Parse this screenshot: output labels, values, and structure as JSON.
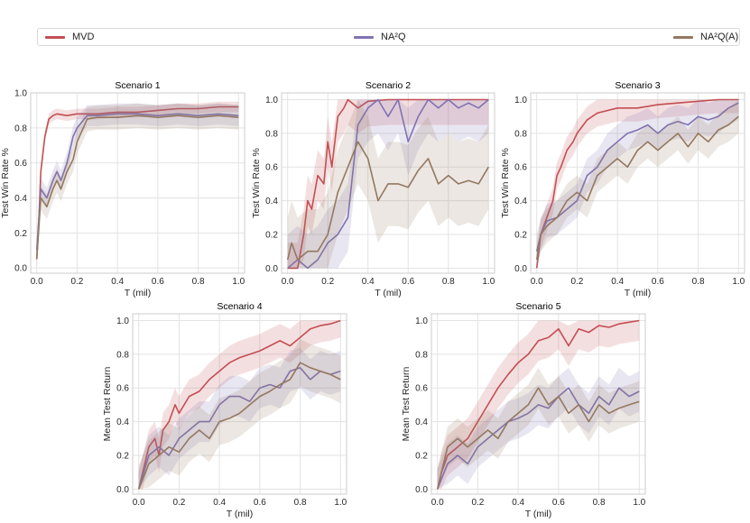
{
  "legend": [
    {
      "label": "MVD",
      "color": "#c44e52"
    },
    {
      "label": "NA²Q",
      "color": "#8172b2"
    },
    {
      "label": "NA²Q(A)",
      "color": "#937860"
    }
  ],
  "chart_data": [
    {
      "type": "line",
      "title": "Scenario 1",
      "xlabel": "T (mil)",
      "ylabel": "Test Win Rate %",
      "xlim": [
        -0.03,
        1.03
      ],
      "ylim": [
        -0.03,
        1.0
      ],
      "xticks": [
        0.0,
        0.2,
        0.4,
        0.6,
        0.8,
        1.0
      ],
      "xtick_labels": [
        "0.0",
        "0.2",
        "0.4",
        "0.6",
        "0.8",
        "1.0"
      ],
      "yticks": [
        0.0,
        0.2,
        0.4,
        0.6,
        0.8,
        1.0
      ],
      "ytick_labels": [
        "0.0",
        "0.2",
        "0.4",
        "0.6",
        "0.8",
        "1.0"
      ],
      "series": [
        {
          "name": "MVD",
          "color": "#c44e52",
          "x": [
            0,
            0.01,
            0.02,
            0.04,
            0.06,
            0.08,
            0.1,
            0.15,
            0.2,
            0.3,
            0.4,
            0.5,
            0.6,
            0.7,
            0.8,
            0.9,
            1.0
          ],
          "y": [
            0.05,
            0.25,
            0.55,
            0.75,
            0.85,
            0.87,
            0.88,
            0.87,
            0.88,
            0.88,
            0.89,
            0.89,
            0.9,
            0.91,
            0.91,
            0.92,
            0.92
          ],
          "band": 0.03
        },
        {
          "name": "NA²Q",
          "color": "#8172b2",
          "x": [
            0,
            0.02,
            0.05,
            0.08,
            0.1,
            0.12,
            0.15,
            0.18,
            0.2,
            0.25,
            0.3,
            0.4,
            0.5,
            0.6,
            0.7,
            0.8,
            0.9,
            1.0
          ],
          "y": [
            0.1,
            0.45,
            0.4,
            0.5,
            0.55,
            0.5,
            0.6,
            0.75,
            0.8,
            0.87,
            0.87,
            0.88,
            0.88,
            0.87,
            0.88,
            0.87,
            0.88,
            0.87
          ],
          "band": 0.06
        },
        {
          "name": "NA²Q(A)",
          "color": "#937860",
          "x": [
            0,
            0.02,
            0.05,
            0.08,
            0.1,
            0.12,
            0.15,
            0.18,
            0.2,
            0.25,
            0.3,
            0.4,
            0.5,
            0.6,
            0.7,
            0.8,
            0.9,
            1.0
          ],
          "y": [
            0.05,
            0.4,
            0.35,
            0.45,
            0.5,
            0.45,
            0.55,
            0.62,
            0.72,
            0.85,
            0.86,
            0.86,
            0.87,
            0.86,
            0.87,
            0.86,
            0.87,
            0.86
          ],
          "band": 0.07
        }
      ]
    },
    {
      "type": "line",
      "title": "Scenario 2",
      "xlabel": "T (mil)",
      "ylabel": "Test Win Rate %",
      "xlim": [
        -0.03,
        1.03
      ],
      "ylim": [
        -0.03,
        1.04
      ],
      "xticks": [
        0.0,
        0.2,
        0.4,
        0.6,
        0.8,
        1.0
      ],
      "xtick_labels": [
        "0.0",
        "0.2",
        "0.4",
        "0.6",
        "0.8",
        "1.0"
      ],
      "yticks": [
        0.0,
        0.2,
        0.4,
        0.6,
        0.8,
        1.0
      ],
      "ytick_labels": [
        "0.0",
        "0.2",
        "0.4",
        "0.6",
        "0.8",
        "1.0"
      ],
      "series": [
        {
          "name": "MVD",
          "color": "#c44e52",
          "x": [
            0,
            0.05,
            0.08,
            0.1,
            0.12,
            0.15,
            0.18,
            0.2,
            0.22,
            0.25,
            0.28,
            0.3,
            0.35,
            0.4,
            0.5,
            0.6,
            0.7,
            0.8,
            0.9,
            1.0
          ],
          "y": [
            0,
            0,
            0.2,
            0.4,
            0.35,
            0.55,
            0.5,
            0.75,
            0.6,
            0.9,
            0.95,
            1.0,
            0.95,
            0.99,
            1.0,
            1.0,
            1.0,
            1.0,
            1.0,
            1.0
          ],
          "band": 0.15
        },
        {
          "name": "NA²Q",
          "color": "#8172b2",
          "x": [
            0,
            0.05,
            0.1,
            0.15,
            0.2,
            0.25,
            0.3,
            0.35,
            0.4,
            0.45,
            0.5,
            0.55,
            0.6,
            0.65,
            0.7,
            0.75,
            0.8,
            0.85,
            0.9,
            0.95,
            1.0
          ],
          "y": [
            0,
            0.05,
            0,
            0.05,
            0.15,
            0.2,
            0.3,
            0.85,
            0.95,
            1.0,
            0.9,
            1.0,
            0.75,
            0.9,
            1.0,
            0.95,
            1.0,
            0.95,
            0.98,
            0.95,
            1.0
          ],
          "band": 0.2
        },
        {
          "name": "NA²Q(A)",
          "color": "#937860",
          "x": [
            0,
            0.02,
            0.05,
            0.1,
            0.15,
            0.2,
            0.25,
            0.3,
            0.35,
            0.4,
            0.45,
            0.5,
            0.55,
            0.6,
            0.65,
            0.7,
            0.75,
            0.8,
            0.85,
            0.9,
            0.95,
            1.0
          ],
          "y": [
            0.05,
            0.15,
            0.05,
            0.1,
            0.1,
            0.2,
            0.45,
            0.6,
            0.75,
            0.65,
            0.4,
            0.5,
            0.5,
            0.48,
            0.58,
            0.65,
            0.5,
            0.55,
            0.5,
            0.52,
            0.5,
            0.6
          ],
          "band": 0.25
        }
      ]
    },
    {
      "type": "line",
      "title": "Scenario 3",
      "xlabel": "T (mil)",
      "ylabel": "Test Win Rate %",
      "xlim": [
        -0.03,
        1.03
      ],
      "ylim": [
        -0.03,
        1.04
      ],
      "xticks": [
        0.0,
        0.2,
        0.4,
        0.6,
        0.8,
        1.0
      ],
      "xtick_labels": [
        "0.0",
        "0.2",
        "0.4",
        "0.6",
        "0.8",
        "1.0"
      ],
      "yticks": [
        0.0,
        0.2,
        0.4,
        0.6,
        0.8,
        1.0
      ],
      "ytick_labels": [
        "0.0",
        "0.2",
        "0.4",
        "0.6",
        "0.8",
        "1.0"
      ],
      "series": [
        {
          "name": "MVD",
          "color": "#c44e52",
          "x": [
            0,
            0.02,
            0.05,
            0.08,
            0.1,
            0.12,
            0.15,
            0.18,
            0.2,
            0.25,
            0.3,
            0.4,
            0.5,
            0.6,
            0.7,
            0.8,
            0.9,
            1.0
          ],
          "y": [
            0,
            0.2,
            0.3,
            0.4,
            0.55,
            0.6,
            0.7,
            0.75,
            0.8,
            0.88,
            0.92,
            0.95,
            0.95,
            0.97,
            0.98,
            0.99,
            1.0,
            1.0
          ],
          "band": 0.08
        },
        {
          "name": "NA²Q",
          "color": "#8172b2",
          "x": [
            0,
            0.02,
            0.05,
            0.1,
            0.15,
            0.2,
            0.25,
            0.3,
            0.35,
            0.4,
            0.45,
            0.5,
            0.55,
            0.6,
            0.65,
            0.7,
            0.75,
            0.8,
            0.85,
            0.9,
            0.95,
            1.0
          ],
          "y": [
            0.1,
            0.2,
            0.28,
            0.3,
            0.35,
            0.4,
            0.55,
            0.6,
            0.7,
            0.75,
            0.8,
            0.82,
            0.85,
            0.8,
            0.85,
            0.87,
            0.85,
            0.9,
            0.88,
            0.9,
            0.95,
            0.98
          ],
          "band": 0.1
        },
        {
          "name": "NA²Q(A)",
          "color": "#937860",
          "x": [
            0,
            0.02,
            0.05,
            0.1,
            0.15,
            0.2,
            0.25,
            0.3,
            0.35,
            0.4,
            0.45,
            0.5,
            0.55,
            0.6,
            0.65,
            0.7,
            0.75,
            0.8,
            0.85,
            0.9,
            0.95,
            1.0
          ],
          "y": [
            0.05,
            0.2,
            0.25,
            0.3,
            0.4,
            0.45,
            0.4,
            0.55,
            0.6,
            0.65,
            0.6,
            0.7,
            0.75,
            0.7,
            0.75,
            0.8,
            0.72,
            0.8,
            0.75,
            0.82,
            0.85,
            0.9
          ],
          "band": 0.1
        }
      ]
    },
    {
      "type": "line",
      "title": "Scenario 4",
      "xlabel": "T (mil)",
      "ylabel": "Mean Test Return",
      "xlim": [
        -0.03,
        1.03
      ],
      "ylim": [
        -0.03,
        1.04
      ],
      "xticks": [
        0.0,
        0.2,
        0.4,
        0.6,
        0.8,
        1.0
      ],
      "xtick_labels": [
        "0.0",
        "0.2",
        "0.4",
        "0.6",
        "0.8",
        "1.0"
      ],
      "yticks": [
        0.0,
        0.2,
        0.4,
        0.6,
        0.8,
        1.0
      ],
      "ytick_labels": [
        "0.0",
        "0.2",
        "0.4",
        "0.6",
        "0.8",
        "1.0"
      ],
      "series": [
        {
          "name": "MVD",
          "color": "#c44e52",
          "x": [
            0,
            0.02,
            0.05,
            0.08,
            0.1,
            0.12,
            0.15,
            0.18,
            0.2,
            0.25,
            0.3,
            0.35,
            0.4,
            0.45,
            0.5,
            0.55,
            0.6,
            0.65,
            0.7,
            0.75,
            0.8,
            0.85,
            0.9,
            0.95,
            1.0
          ],
          "y": [
            0,
            0.1,
            0.25,
            0.3,
            0.2,
            0.35,
            0.4,
            0.5,
            0.45,
            0.55,
            0.58,
            0.65,
            0.7,
            0.75,
            0.78,
            0.8,
            0.82,
            0.85,
            0.88,
            0.85,
            0.9,
            0.95,
            0.97,
            0.98,
            1.0
          ],
          "band": 0.1
        },
        {
          "name": "NA²Q",
          "color": "#8172b2",
          "x": [
            0,
            0.05,
            0.1,
            0.15,
            0.2,
            0.25,
            0.3,
            0.35,
            0.4,
            0.45,
            0.5,
            0.55,
            0.6,
            0.65,
            0.7,
            0.75,
            0.8,
            0.85,
            0.9,
            0.95,
            1.0
          ],
          "y": [
            0,
            0.2,
            0.25,
            0.2,
            0.3,
            0.35,
            0.4,
            0.4,
            0.5,
            0.55,
            0.55,
            0.52,
            0.6,
            0.62,
            0.6,
            0.7,
            0.72,
            0.65,
            0.7,
            0.68,
            0.7
          ],
          "band": 0.12
        },
        {
          "name": "NA²Q(A)",
          "color": "#937860",
          "x": [
            0,
            0.05,
            0.1,
            0.15,
            0.2,
            0.25,
            0.3,
            0.35,
            0.4,
            0.45,
            0.5,
            0.55,
            0.6,
            0.65,
            0.7,
            0.75,
            0.8,
            0.85,
            0.9,
            0.95,
            1.0
          ],
          "y": [
            0,
            0.15,
            0.2,
            0.25,
            0.22,
            0.3,
            0.35,
            0.3,
            0.4,
            0.42,
            0.45,
            0.5,
            0.55,
            0.58,
            0.62,
            0.65,
            0.75,
            0.72,
            0.7,
            0.68,
            0.65
          ],
          "band": 0.14
        }
      ]
    },
    {
      "type": "line",
      "title": "Scenario 5",
      "xlabel": "T (mil)",
      "ylabel": "Mean Test Return",
      "xlim": [
        -0.03,
        1.03
      ],
      "ylim": [
        -0.03,
        1.04
      ],
      "xticks": [
        0.0,
        0.2,
        0.4,
        0.6,
        0.8,
        1.0
      ],
      "xtick_labels": [
        "0.0",
        "0.2",
        "0.4",
        "0.6",
        "0.8",
        "1.0"
      ],
      "yticks": [
        0.0,
        0.2,
        0.4,
        0.6,
        0.8,
        1.0
      ],
      "ytick_labels": [
        "0.0",
        "0.2",
        "0.4",
        "0.6",
        "0.8",
        "1.0"
      ],
      "series": [
        {
          "name": "MVD",
          "color": "#c44e52",
          "x": [
            0,
            0.02,
            0.05,
            0.1,
            0.15,
            0.2,
            0.25,
            0.3,
            0.35,
            0.4,
            0.45,
            0.5,
            0.55,
            0.6,
            0.65,
            0.7,
            0.75,
            0.8,
            0.85,
            0.9,
            0.95,
            1.0
          ],
          "y": [
            0,
            0.1,
            0.2,
            0.25,
            0.3,
            0.4,
            0.5,
            0.6,
            0.68,
            0.75,
            0.8,
            0.88,
            0.9,
            0.95,
            0.85,
            0.95,
            0.93,
            0.97,
            0.96,
            0.98,
            0.99,
            1.0
          ],
          "band": 0.12
        },
        {
          "name": "NA²Q",
          "color": "#8172b2",
          "x": [
            0,
            0.05,
            0.1,
            0.15,
            0.2,
            0.25,
            0.3,
            0.35,
            0.4,
            0.45,
            0.5,
            0.55,
            0.6,
            0.65,
            0.7,
            0.75,
            0.8,
            0.85,
            0.9,
            0.95,
            1.0
          ],
          "y": [
            0,
            0.15,
            0.2,
            0.15,
            0.25,
            0.3,
            0.35,
            0.4,
            0.42,
            0.45,
            0.5,
            0.48,
            0.55,
            0.6,
            0.5,
            0.45,
            0.55,
            0.5,
            0.6,
            0.55,
            0.58
          ],
          "band": 0.12
        },
        {
          "name": "NA²Q(A)",
          "color": "#937860",
          "x": [
            0,
            0.05,
            0.1,
            0.15,
            0.2,
            0.25,
            0.3,
            0.35,
            0.4,
            0.45,
            0.5,
            0.55,
            0.6,
            0.65,
            0.7,
            0.75,
            0.8,
            0.85,
            0.9,
            0.95,
            1.0
          ],
          "y": [
            0,
            0.25,
            0.3,
            0.25,
            0.3,
            0.35,
            0.3,
            0.4,
            0.45,
            0.5,
            0.6,
            0.5,
            0.55,
            0.45,
            0.5,
            0.4,
            0.5,
            0.45,
            0.48,
            0.5,
            0.52
          ],
          "band": 0.12
        }
      ]
    }
  ]
}
